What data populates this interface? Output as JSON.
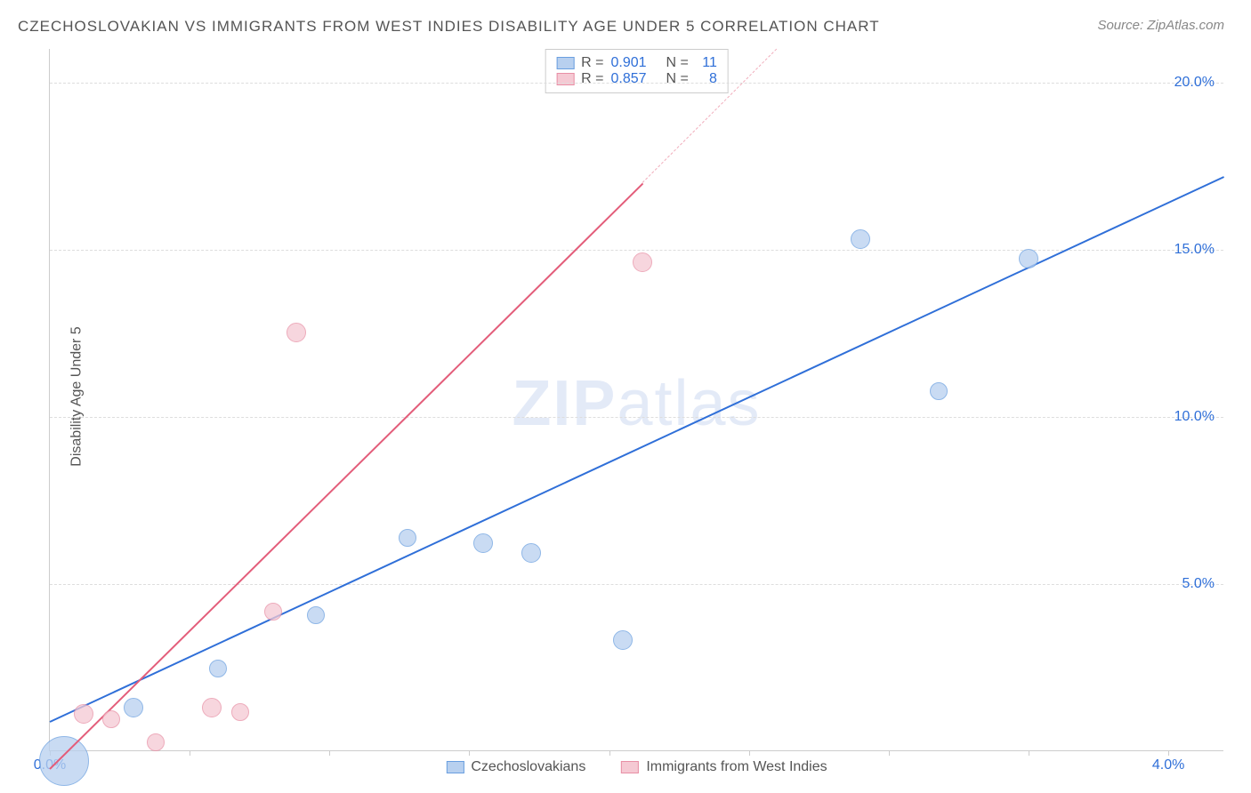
{
  "title": "CZECHOSLOVAKIAN VS IMMIGRANTS FROM WEST INDIES DISABILITY AGE UNDER 5 CORRELATION CHART",
  "source": "Source: ZipAtlas.com",
  "y_axis_label": "Disability Age Under 5",
  "watermark_part1": "ZIP",
  "watermark_part2": "atlas",
  "watermark_color": "#6a8fd8",
  "chart": {
    "type": "scatter",
    "plot_bg": "#ffffff",
    "grid_color": "#dddddd",
    "axis_color": "#cccccc",
    "xlim": [
      0.0,
      4.2
    ],
    "ylim": [
      0.0,
      21.0
    ],
    "x_ticks": [
      0.0,
      0.5,
      1.0,
      1.5,
      2.0,
      2.5,
      3.0,
      3.5,
      4.0
    ],
    "x_tick_labels": {
      "0": "0.0%",
      "4": "4.0%"
    },
    "x_tick_label_colors": {
      "0": "#2f6fd8",
      "4": "#2f6fd8"
    },
    "y_gridlines": [
      5.0,
      10.0,
      15.0,
      20.0
    ],
    "y_tick_labels": {
      "5": "5.0%",
      "10": "10.0%",
      "15": "15.0%",
      "20": "20.0%"
    },
    "y_tick_color": "#2f6fd8"
  },
  "series": [
    {
      "name": "Czechoslovakians",
      "fill": "#b8d0ef",
      "stroke": "#6a9fe0",
      "line_color": "#2f6fd8",
      "R": "0.901",
      "N": "11",
      "points": [
        {
          "x": 0.05,
          "y": 1.2,
          "r": 28
        },
        {
          "x": 0.3,
          "y": 1.9,
          "r": 11
        },
        {
          "x": 0.6,
          "y": 3.0,
          "r": 10
        },
        {
          "x": 0.95,
          "y": 4.6,
          "r": 10
        },
        {
          "x": 1.28,
          "y": 6.9,
          "r": 10
        },
        {
          "x": 1.55,
          "y": 6.8,
          "r": 11
        },
        {
          "x": 1.72,
          "y": 6.5,
          "r": 11
        },
        {
          "x": 2.05,
          "y": 3.9,
          "r": 11
        },
        {
          "x": 2.9,
          "y": 15.9,
          "r": 11
        },
        {
          "x": 3.18,
          "y": 11.3,
          "r": 10
        },
        {
          "x": 3.5,
          "y": 15.3,
          "r": 11
        }
      ],
      "regression": {
        "x1": 0.0,
        "y1": 0.9,
        "x2": 4.2,
        "y2": 17.2
      }
    },
    {
      "name": "Immigrants from West Indies",
      "fill": "#f5c9d3",
      "stroke": "#e88fa5",
      "line_color": "#e35d7a",
      "R": "0.857",
      "N": "8",
      "points": [
        {
          "x": 0.12,
          "y": 1.7,
          "r": 11
        },
        {
          "x": 0.22,
          "y": 1.5,
          "r": 10
        },
        {
          "x": 0.38,
          "y": 0.8,
          "r": 10
        },
        {
          "x": 0.58,
          "y": 1.9,
          "r": 11
        },
        {
          "x": 0.68,
          "y": 1.7,
          "r": 10
        },
        {
          "x": 0.8,
          "y": 4.7,
          "r": 10
        },
        {
          "x": 0.88,
          "y": 13.1,
          "r": 11
        },
        {
          "x": 2.12,
          "y": 15.2,
          "r": 11
        }
      ],
      "regression": {
        "x1": 0.0,
        "y1": -0.5,
        "x2": 2.12,
        "y2": 17.0
      },
      "regression_dashed": {
        "x1": 2.12,
        "y1": 17.0,
        "x2": 2.6,
        "y2": 21.0
      }
    }
  ],
  "legend_top": {
    "R_label": "R =",
    "N_label": "N =",
    "value_color": "#2f6fd8"
  },
  "legend_bottom": [
    {
      "label": "Czechoslovakians",
      "fill": "#b8d0ef",
      "stroke": "#6a9fe0"
    },
    {
      "label": "Immigrants from West Indies",
      "fill": "#f5c9d3",
      "stroke": "#e88fa5"
    }
  ]
}
